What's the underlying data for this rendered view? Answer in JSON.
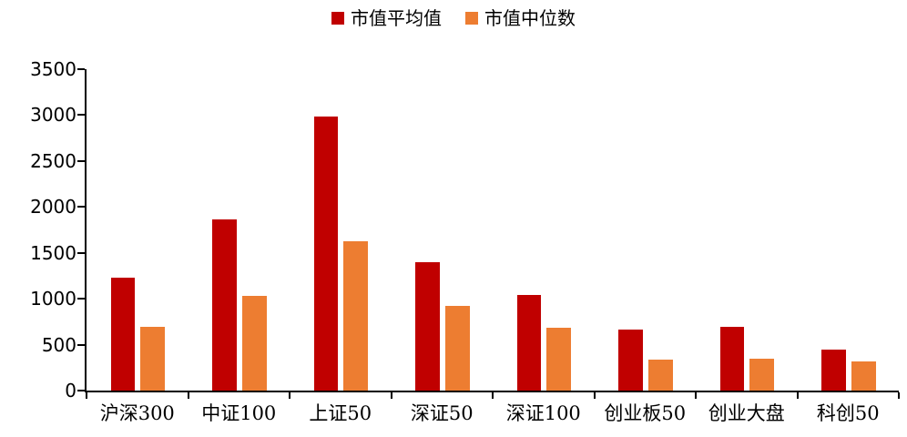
{
  "chart_data": {
    "type": "bar",
    "title": "",
    "categories": [
      "沪深300",
      "中证100",
      "上证50",
      "深证50",
      "深证100",
      "创业板50",
      "创业大盘",
      "科创50"
    ],
    "series": [
      {
        "name": "市值平均值",
        "color": "#C00000",
        "values": [
          1230,
          1860,
          2980,
          1400,
          1040,
          660,
          690,
          450
        ]
      },
      {
        "name": "市值中位数",
        "color": "#ED7D31",
        "values": [
          690,
          1030,
          1630,
          920,
          680,
          340,
          350,
          320
        ]
      }
    ],
    "xlabel": "",
    "ylabel": "",
    "ylim": [
      0,
      3500
    ],
    "yticks": [
      0,
      500,
      1000,
      1500,
      2000,
      2500,
      3000,
      3500
    ],
    "grid": false,
    "legend_position": "top-center",
    "axis_color": "#000000",
    "background_color": "#FFFFFF",
    "text_color": "#000000"
  }
}
